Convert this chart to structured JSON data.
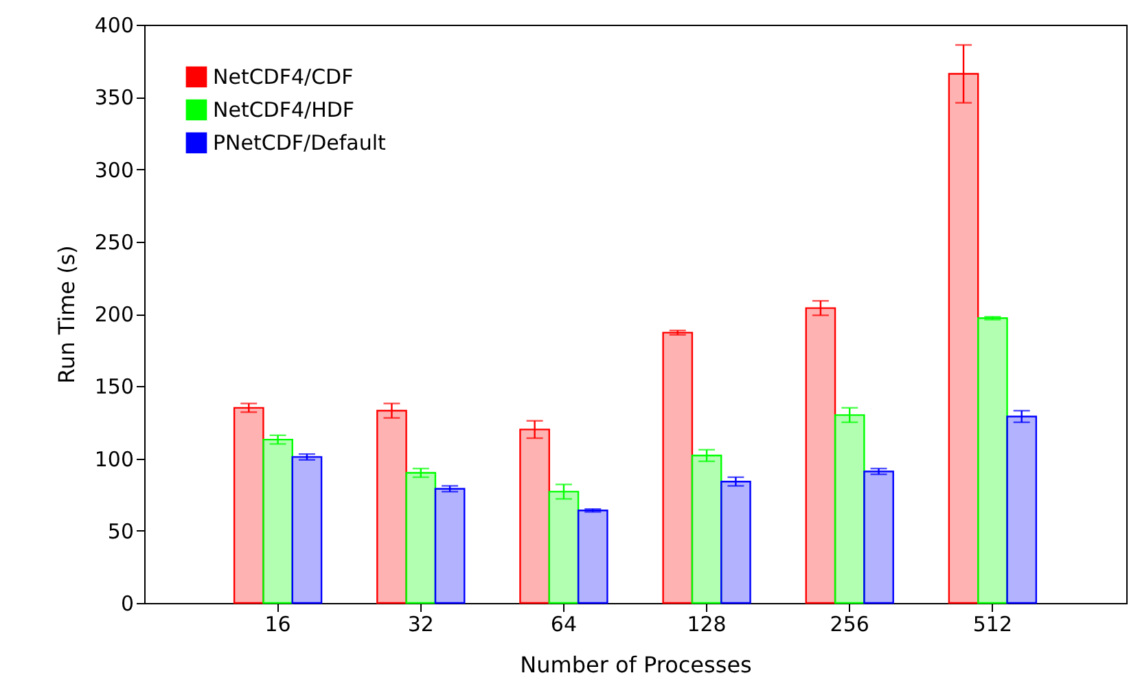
{
  "chart_data": {
    "type": "bar",
    "xlabel": "Number of Processes",
    "ylabel": "Run Time (s)",
    "categories": [
      "16",
      "32",
      "64",
      "128",
      "256",
      "512"
    ],
    "series": [
      {
        "name": "NetCDF4/CDF",
        "color": "#ff0000",
        "values": [
          135,
          133,
          120,
          187,
          204,
          366
        ],
        "errors": [
          3,
          5,
          6,
          1.5,
          5,
          20
        ]
      },
      {
        "name": "NetCDF4/HDF",
        "color": "#00ff00",
        "values": [
          113,
          90,
          77,
          102,
          130,
          197
        ],
        "errors": [
          3,
          3,
          5,
          4,
          5,
          1
        ]
      },
      {
        "name": "PNetCDF/Default",
        "color": "#0000ff",
        "values": [
          101,
          79,
          64,
          84,
          91,
          129
        ],
        "errors": [
          2,
          2,
          1,
          3,
          2,
          4
        ]
      }
    ],
    "ylim": [
      0,
      400
    ],
    "yticks": [
      0,
      50,
      100,
      150,
      200,
      250,
      300,
      350,
      400
    ],
    "grid": false,
    "legend": "top left"
  }
}
